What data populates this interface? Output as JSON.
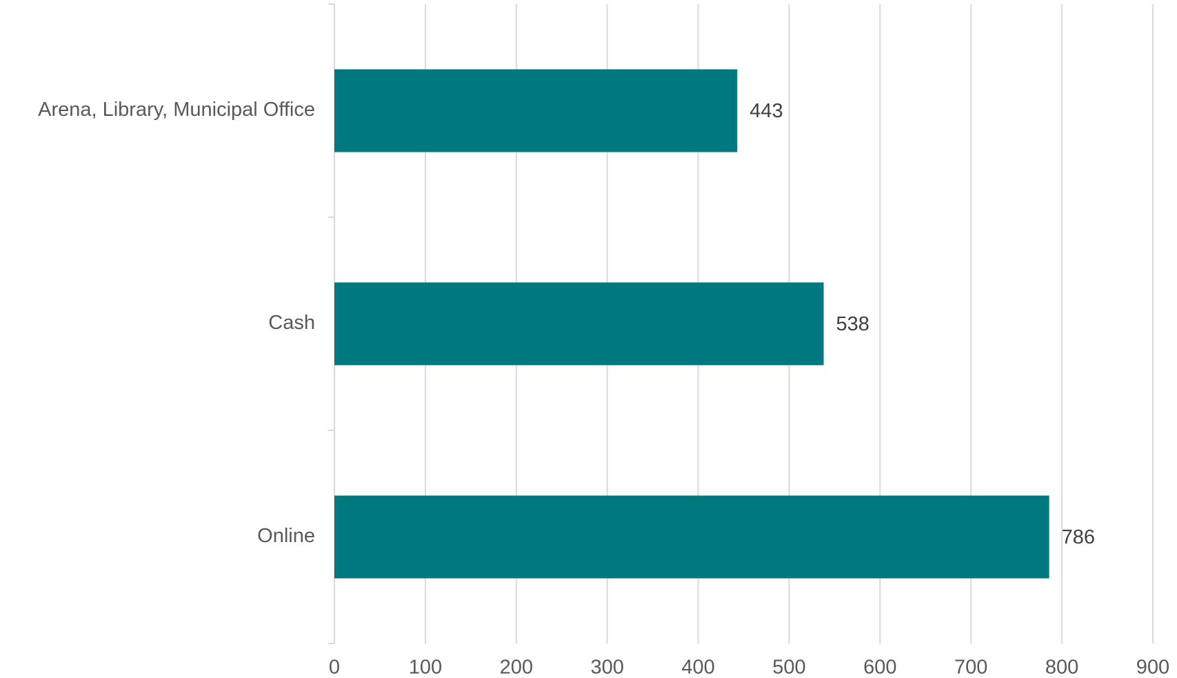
{
  "chart_data": {
    "type": "bar",
    "orientation": "horizontal",
    "categories": [
      "Arena, Library, Municipal Office",
      "Cash",
      "Online"
    ],
    "values": [
      443,
      538,
      786
    ],
    "color": "#00787f",
    "xlim": [
      0,
      900
    ],
    "xticks": [
      0,
      100,
      200,
      300,
      400,
      500,
      600,
      700,
      800,
      900
    ],
    "grid": true
  }
}
